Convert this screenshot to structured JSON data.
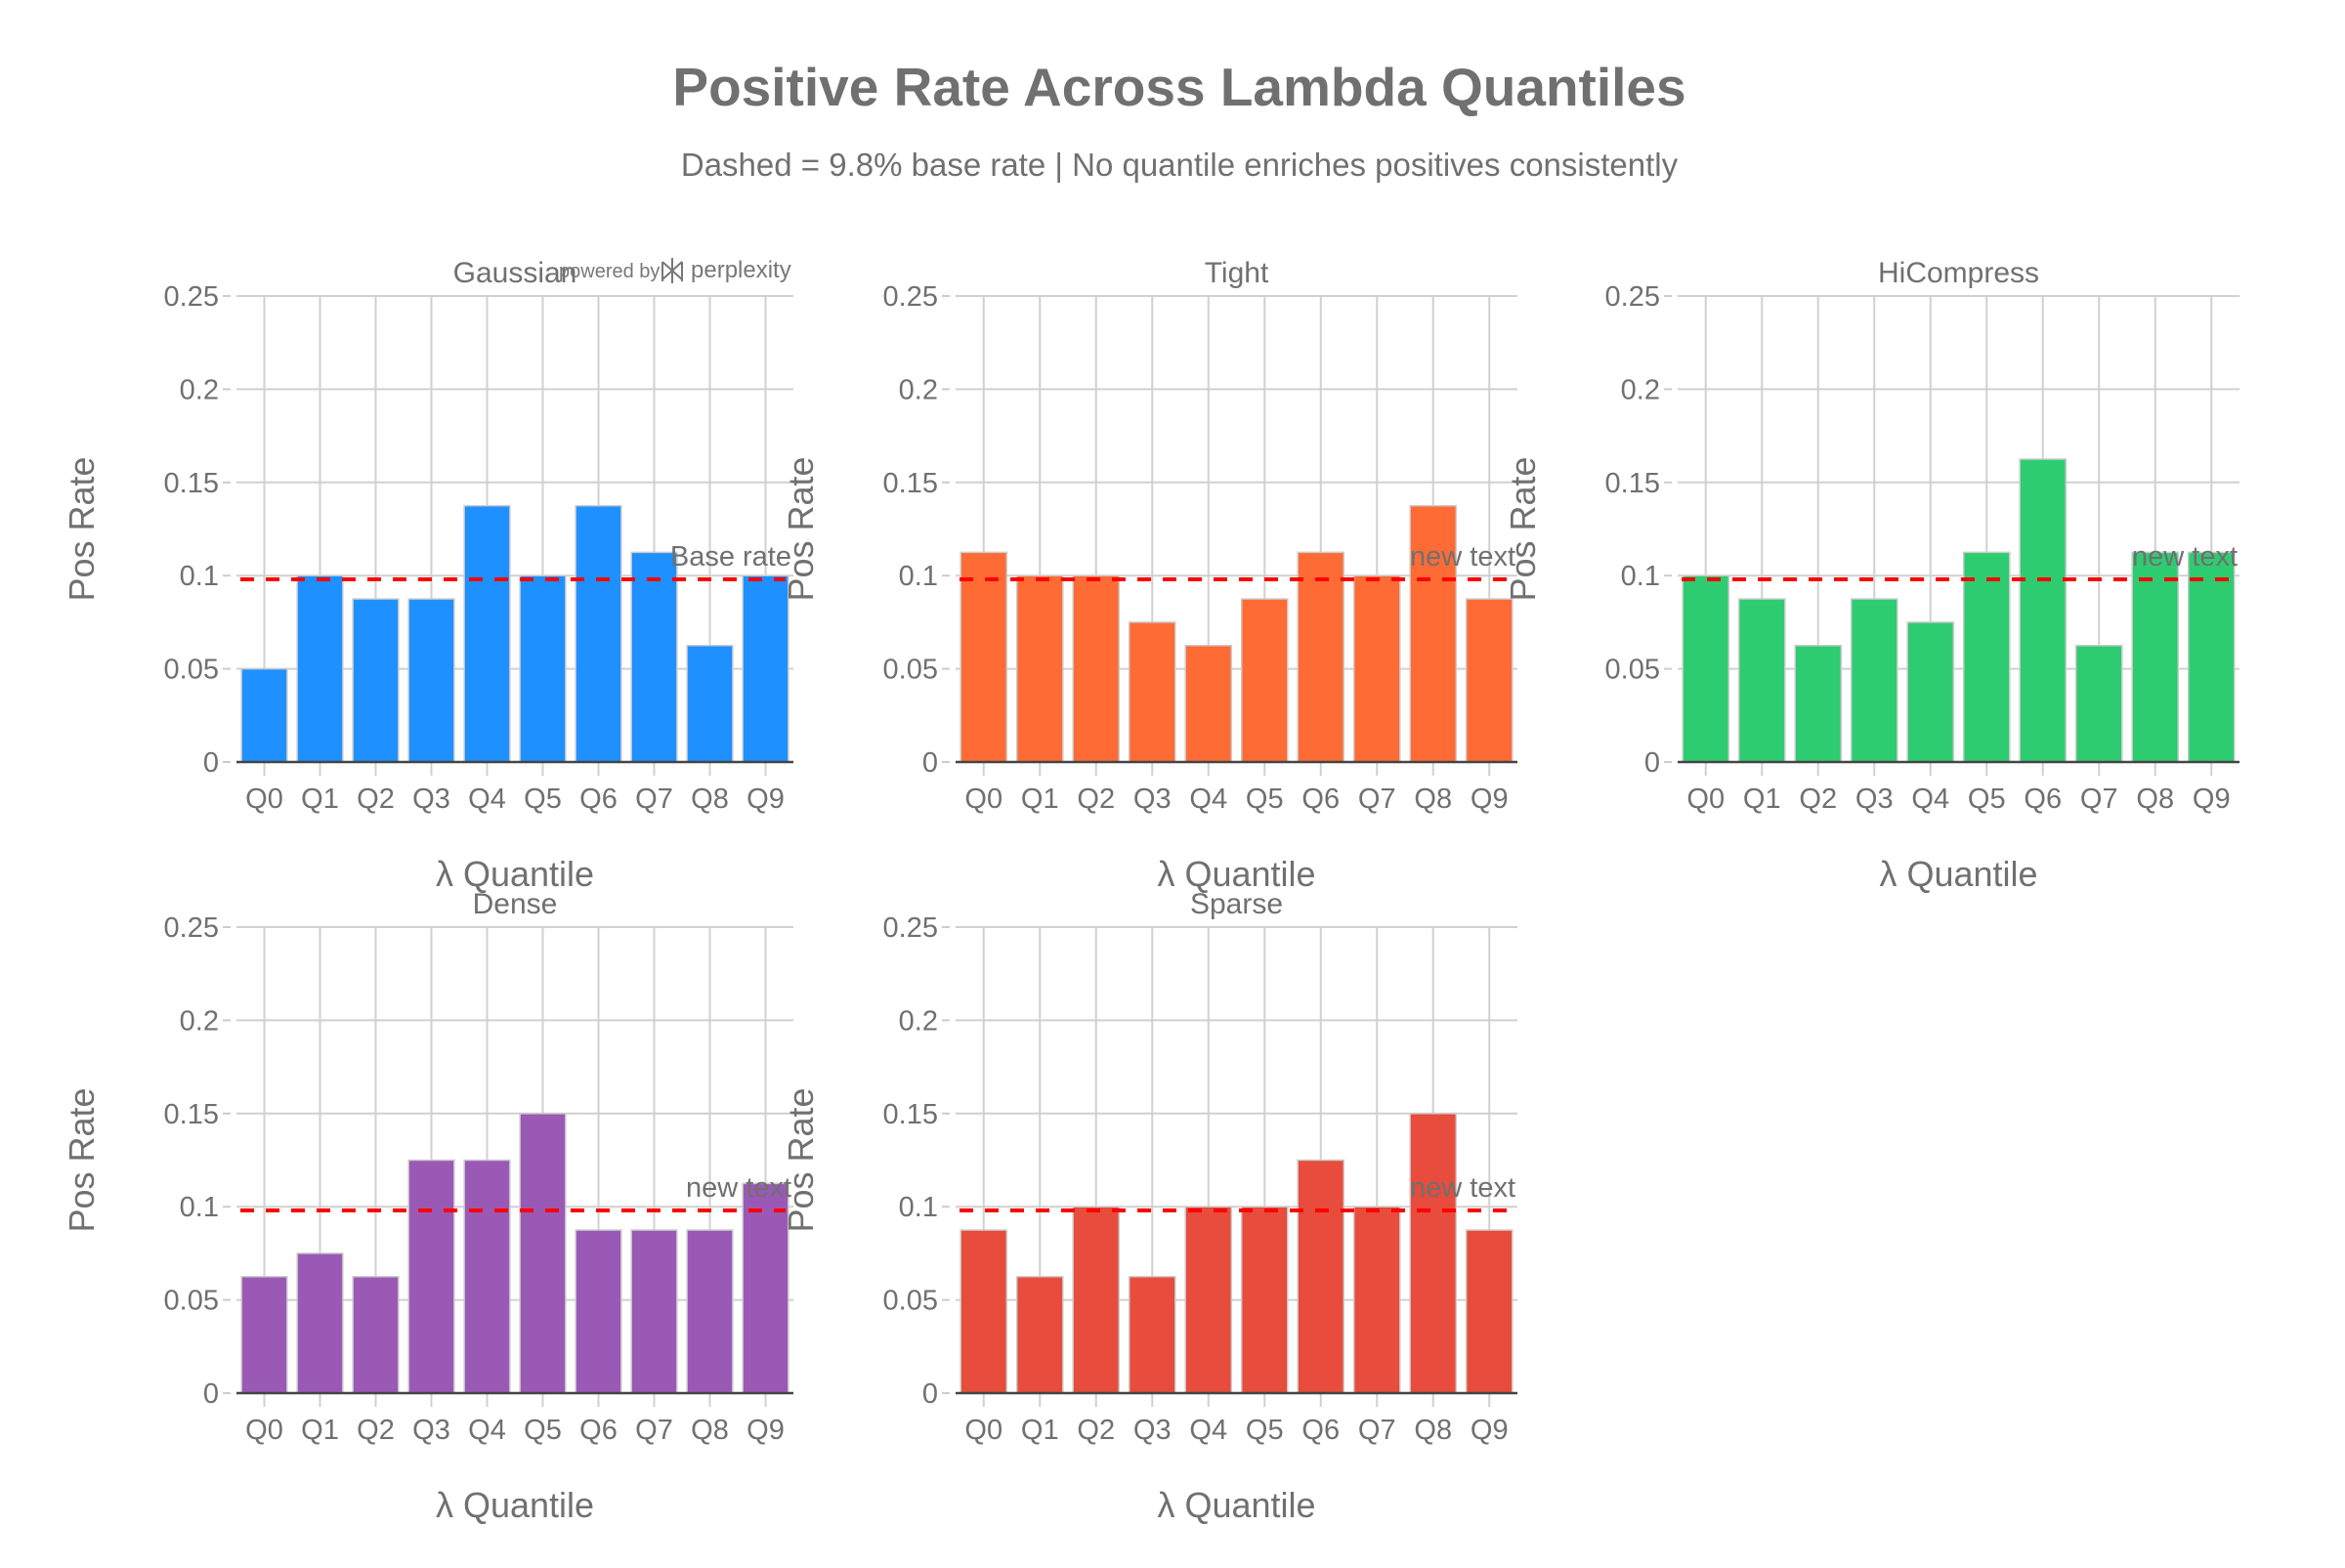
{
  "title": "Positive Rate Across Lambda Quantiles",
  "subtitle": "Dashed = 9.8% base rate | No quantile enriches positives consistently",
  "watermark": {
    "prefix": "powered by",
    "brand": "perplexity"
  },
  "chart_data": [
    {
      "type": "bar",
      "title": "Gaussian",
      "xlabel": "λ Quantile",
      "ylabel": "Pos Rate",
      "ylim": [
        0,
        0.25
      ],
      "yticks": [
        "0",
        "0.05",
        "0.1",
        "0.15",
        "0.2",
        "0.25"
      ],
      "categories": [
        "Q0",
        "Q1",
        "Q2",
        "Q3",
        "Q4",
        "Q5",
        "Q6",
        "Q7",
        "Q8",
        "Q9"
      ],
      "values": [
        0.05,
        0.1,
        0.0875,
        0.0875,
        0.1375,
        0.1,
        0.1375,
        0.1125,
        0.0625,
        0.1
      ],
      "color": "#1E90FF",
      "base_rate": 0.098,
      "annotation": "Base rate",
      "grid": true
    },
    {
      "type": "bar",
      "title": "Tight",
      "xlabel": "λ Quantile",
      "ylabel": "Pos Rate",
      "ylim": [
        0,
        0.25
      ],
      "yticks": [
        "0",
        "0.05",
        "0.1",
        "0.15",
        "0.2",
        "0.25"
      ],
      "categories": [
        "Q0",
        "Q1",
        "Q2",
        "Q3",
        "Q4",
        "Q5",
        "Q6",
        "Q7",
        "Q8",
        "Q9"
      ],
      "values": [
        0.1125,
        0.1,
        0.1,
        0.075,
        0.0625,
        0.0875,
        0.1125,
        0.1,
        0.1375,
        0.0875
      ],
      "color": "#FF6B35",
      "base_rate": 0.098,
      "annotation": "new text",
      "grid": true
    },
    {
      "type": "bar",
      "title": "HiCompress",
      "xlabel": "λ Quantile",
      "ylabel": "Pos Rate",
      "ylim": [
        0,
        0.25
      ],
      "yticks": [
        "0",
        "0.05",
        "0.1",
        "0.15",
        "0.2",
        "0.25"
      ],
      "categories": [
        "Q0",
        "Q1",
        "Q2",
        "Q3",
        "Q4",
        "Q5",
        "Q6",
        "Q7",
        "Q8",
        "Q9"
      ],
      "values": [
        0.1,
        0.0875,
        0.0625,
        0.0875,
        0.075,
        0.1125,
        0.1625,
        0.0625,
        0.1125,
        0.1125
      ],
      "color": "#2ECC71",
      "base_rate": 0.098,
      "annotation": "new text",
      "grid": true
    },
    {
      "type": "bar",
      "title": "Dense",
      "xlabel": "λ Quantile",
      "ylabel": "Pos Rate",
      "ylim": [
        0,
        0.25
      ],
      "yticks": [
        "0",
        "0.05",
        "0.1",
        "0.15",
        "0.2",
        "0.25"
      ],
      "categories": [
        "Q0",
        "Q1",
        "Q2",
        "Q3",
        "Q4",
        "Q5",
        "Q6",
        "Q7",
        "Q8",
        "Q9"
      ],
      "values": [
        0.0625,
        0.075,
        0.0625,
        0.125,
        0.125,
        0.15,
        0.0875,
        0.0875,
        0.0875,
        0.1125
      ],
      "color": "#9B59B6",
      "base_rate": 0.098,
      "annotation": "new text",
      "grid": true
    },
    {
      "type": "bar",
      "title": "Sparse",
      "xlabel": "λ Quantile",
      "ylabel": "Pos Rate",
      "ylim": [
        0,
        0.25
      ],
      "yticks": [
        "0",
        "0.05",
        "0.1",
        "0.15",
        "0.2",
        "0.25"
      ],
      "categories": [
        "Q0",
        "Q1",
        "Q2",
        "Q3",
        "Q4",
        "Q5",
        "Q6",
        "Q7",
        "Q8",
        "Q9"
      ],
      "values": [
        0.0875,
        0.0625,
        0.1,
        0.0625,
        0.1,
        0.1,
        0.125,
        0.1,
        0.15,
        0.0875
      ],
      "color": "#E74C3C",
      "base_rate": 0.098,
      "annotation": "new text",
      "grid": true
    }
  ]
}
